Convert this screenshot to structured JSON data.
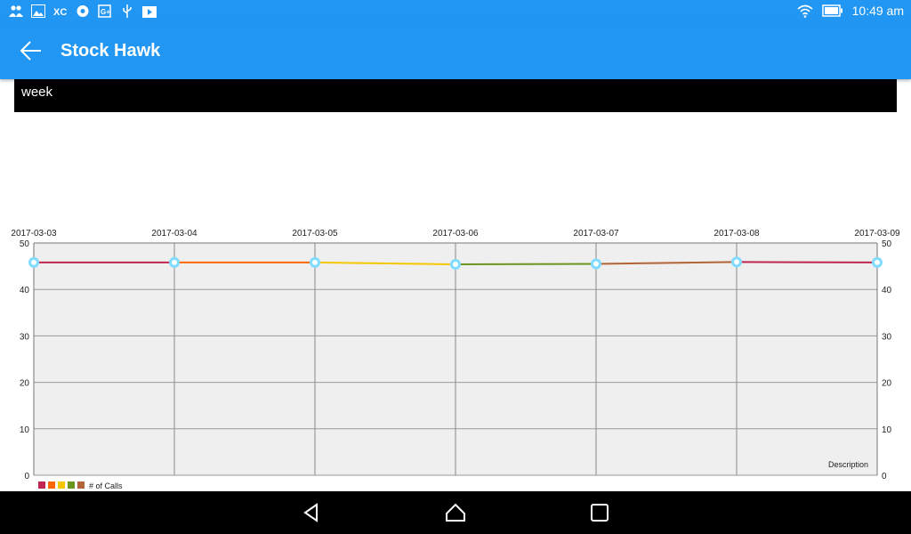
{
  "status_bar": {
    "time": "10:49 am",
    "left_icons": [
      "contacts-icon",
      "image-icon",
      "xc-icon",
      "gear-badge-icon",
      "gplus-icon",
      "usb-icon",
      "play-store-icon"
    ],
    "right_icons": [
      "wifi-icon",
      "battery-icon"
    ]
  },
  "app_bar": {
    "title": "Stock Hawk",
    "back_icon": "arrow-back-icon"
  },
  "period": {
    "label": "week"
  },
  "chart_data": {
    "type": "line",
    "x": [
      "2017-03-03",
      "2017-03-04",
      "2017-03-05",
      "2017-03-06",
      "2017-03-07",
      "2017-03-08",
      "2017-03-09"
    ],
    "series": [
      {
        "name": "# of Calls",
        "values": [
          45.8,
          45.8,
          45.8,
          45.4,
          45.5,
          45.9,
          45.8
        ]
      }
    ],
    "segment_colors": [
      "#c12552",
      "#ff6600",
      "#f5c700",
      "#6a961f",
      "#b36435",
      "#c12552"
    ],
    "marker_color": "#7fdbff",
    "ylim": [
      0,
      50
    ],
    "yticks": [
      0,
      10,
      20,
      30,
      40,
      50
    ],
    "x_axis_position": "top",
    "y_axis": "both",
    "grid": true,
    "legend": {
      "placement": "bottom-left",
      "colors": [
        "#c12552",
        "#ff6600",
        "#f5c700",
        "#6a961f",
        "#b36435"
      ],
      "label": "# of Calls"
    },
    "description": "Description"
  },
  "nav_bar": {
    "icons": [
      "back-triangle-icon",
      "home-icon",
      "recents-icon"
    ]
  }
}
